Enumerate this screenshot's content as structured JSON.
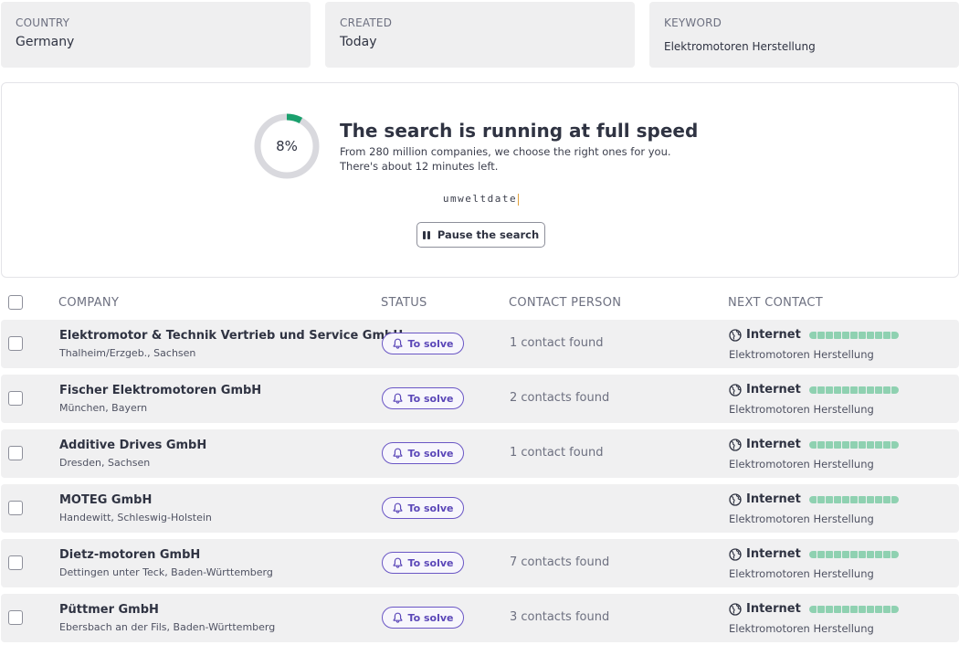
{
  "filters": {
    "country": {
      "label": "COUNTRY",
      "value": "Germany"
    },
    "created": {
      "label": "CREATED",
      "value": "Today"
    },
    "keyword": {
      "label": "KEYWORD",
      "value": "Elektromotoren Herstellung"
    }
  },
  "status": {
    "percent_label": "8%",
    "progress": 0.08,
    "headline": "The search is running at full speed",
    "subtext": "From 280 million companies, we choose the right ones for you. There's about 12 minutes left.",
    "typing": "umweltdate",
    "pause_label": "Pause the search",
    "colors": {
      "ring_track": "#d9d9de",
      "ring_fill": "#1aa06d"
    }
  },
  "table": {
    "headers": {
      "company": "COMPANY",
      "status": "STATUS",
      "contact": "CONTACT PERSON",
      "next": "NEXT CONTACT"
    },
    "rows": [
      {
        "name": "Elektromotor & Technik Vertrieb und Service GmbH",
        "location": "Thalheim/Erzgeb., Sachsen",
        "status": "To solve",
        "contacts": "1 contact found",
        "source": "Internet",
        "keyword": "Elektromotoren Herstellung"
      },
      {
        "name": "Fischer Elektromotoren GmbH",
        "location": "München, Bayern",
        "status": "To solve",
        "contacts": "2 contacts found",
        "source": "Internet",
        "keyword": "Elektromotoren Herstellung"
      },
      {
        "name": "Additive Drives GmbH",
        "location": "Dresden, Sachsen",
        "status": "To solve",
        "contacts": "1 contact found",
        "source": "Internet",
        "keyword": "Elektromotoren Herstellung"
      },
      {
        "name": "MOTEG GmbH",
        "location": "Handewitt, Schleswig-Holstein",
        "status": "To solve",
        "contacts": "",
        "source": "Internet",
        "keyword": "Elektromotoren Herstellung"
      },
      {
        "name": "Dietz-motoren GmbH",
        "location": "Dettingen unter Teck, Baden-Württemberg",
        "status": "To solve",
        "contacts": "7 contacts found",
        "source": "Internet",
        "keyword": "Elektromotoren Herstellung"
      },
      {
        "name": "Püttmer GmbH",
        "location": "Ebersbach an der Fils, Baden-Württemberg",
        "status": "To solve",
        "contacts": "3 contacts found",
        "source": "Internet",
        "keyword": "Elektromotoren Herstellung"
      }
    ]
  },
  "icons": {
    "pause": "pause-icon",
    "bell": "bell-icon",
    "globe": "globe-icon",
    "checkbox": "checkbox"
  },
  "colors": {
    "accent": "#5b47b8",
    "progress_green": "#8fd1b1",
    "card_bg": "#efeff0"
  }
}
